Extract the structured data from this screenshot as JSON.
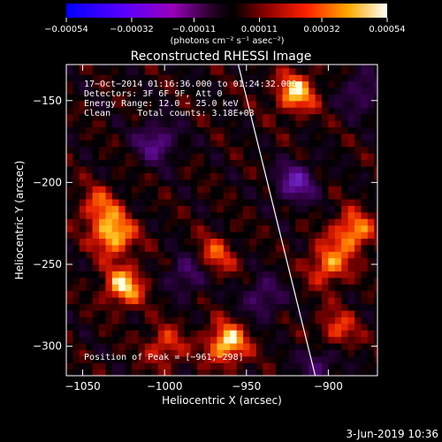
{
  "chart_data": {
    "type": "heatmap",
    "title": "Reconstructed RHESSI Image",
    "xlabel": "Heliocentric X (arcsec)",
    "ylabel": "Heliocentric Y (arcsec)",
    "xlim": [
      -1060,
      -870
    ],
    "ylim": [
      -318,
      -128
    ],
    "x_ticks": [
      -1050,
      -1000,
      -950,
      -900
    ],
    "x_tick_labels": [
      "−1050",
      "−1000",
      "−950",
      "−900"
    ],
    "y_ticks": [
      -150,
      -200,
      -250,
      -300
    ],
    "y_tick_labels": [
      "−150",
      "−200",
      "−250",
      "−300"
    ],
    "colorbar": {
      "ticks": [
        -0.00054,
        -0.00032,
        -0.00011,
        0.00011,
        0.00032,
        0.00054
      ],
      "tick_labels": [
        "−0.00054",
        "−0.00032",
        "−0.00011",
        "0.00011",
        "0.00032",
        "0.00054"
      ],
      "unit_label": "(photons cm⁻² s⁻¹ asec⁻²)",
      "colors": [
        "#0000ff",
        "#7a00ff",
        "#aa00aa",
        "#000000",
        "#7a0000",
        "#ff2200",
        "#ff9900",
        "#ffffff"
      ]
    },
    "annotations": [
      "17−Oct−2014 01:16:36.000 to 01:24:32.000",
      "Detectors: 3F 6F 9F, Att 0",
      "Energy Range: 12.0 − 25.0 keV",
      "Clean     Total counts: 3.18E+03"
    ],
    "peak_label": "Position of Peak = [−961,−298]",
    "peak": {
      "x": -961,
      "y": -298
    },
    "limb_line": [
      {
        "x": -955,
        "y": -128
      },
      {
        "x": -908,
        "y": -318
      }
    ],
    "bright_sources": [
      {
        "x": -1031,
        "y": -232,
        "level": 0.95
      },
      {
        "x": -1025,
        "y": -263,
        "level": 0.9
      },
      {
        "x": -962,
        "y": -298,
        "level": 1.0
      },
      {
        "x": -920,
        "y": -145,
        "level": 0.9
      },
      {
        "x": -885,
        "y": -230,
        "level": 0.85
      },
      {
        "x": -900,
        "y": -250,
        "level": 0.75
      },
      {
        "x": -1040,
        "y": -215,
        "level": 0.6
      },
      {
        "x": -970,
        "y": -245,
        "level": 0.6
      },
      {
        "x": -1000,
        "y": -300,
        "level": 0.55
      },
      {
        "x": -895,
        "y": -290,
        "level": 0.55
      }
    ],
    "dim_regions": [
      {
        "x": -1005,
        "y": -175,
        "level": -0.7
      },
      {
        "x": -920,
        "y": -200,
        "level": -0.8
      },
      {
        "x": -985,
        "y": -255,
        "level": -0.6
      },
      {
        "x": -880,
        "y": -145,
        "level": -0.5
      },
      {
        "x": -905,
        "y": -310,
        "level": -0.5
      },
      {
        "x": -940,
        "y": -270,
        "level": -0.55
      }
    ]
  },
  "footer_date": "3-Jun-2019 10:36"
}
